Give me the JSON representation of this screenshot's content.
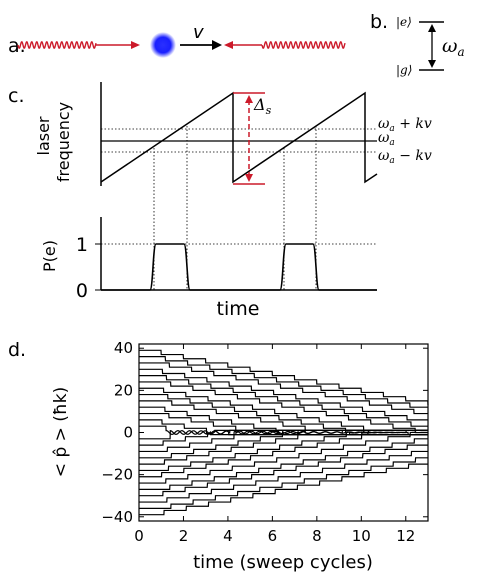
{
  "panel_labels": {
    "a": "a.",
    "b": "b.",
    "c": "c.",
    "d": "d."
  },
  "panel_a": {
    "velocity_label": "v"
  },
  "panel_b": {
    "excited_state": "|e⟩",
    "ground_state": "|g⟩",
    "transition_label": "ω",
    "transition_sub": "a"
  },
  "panel_c": {
    "ylabel_line1": "laser",
    "ylabel_line2": "frequency",
    "sweep_label": "Δ",
    "sweep_sub": "s",
    "line_upper": "ω",
    "line_upper_sub": "a",
    "line_upper_suffix": " + kv",
    "line_mid": "ω",
    "line_mid_sub": "a",
    "line_lower": "ω",
    "line_lower_sub": "a",
    "line_lower_suffix": " − kv",
    "pe_ylabel": "P(e)",
    "pe_tick_1": "1",
    "pe_tick_0": "0",
    "xlabel": "time"
  },
  "colors": {
    "red": "#cc1a2a",
    "atom_blue": "#1a20ff",
    "black": "#000000"
  },
  "chart_data": {
    "type": "line",
    "xlabel": "time (sweep cycles)",
    "ylabel": "< p̂ >  (ħk)",
    "xlim": [
      0,
      13
    ],
    "ylim": [
      -42,
      42
    ],
    "xticks": [
      "0",
      "2",
      "4",
      "6",
      "8",
      "10",
      "12"
    ],
    "yticks": [
      "40",
      "20",
      "0",
      "−20",
      "−40"
    ],
    "xtick_values": [
      0,
      2,
      4,
      6,
      8,
      10,
      12
    ],
    "ytick_values": [
      40,
      20,
      0,
      -20,
      -40
    ],
    "initial_momenta": [
      39,
      36,
      33,
      30,
      27,
      24,
      21,
      18,
      15,
      12,
      9,
      6,
      3,
      -3,
      -6,
      -9,
      -12,
      -15,
      -18,
      -21,
      -24,
      -27,
      -30,
      -33,
      -36,
      -39
    ],
    "step_per_cycle": 2,
    "grid": false
  }
}
